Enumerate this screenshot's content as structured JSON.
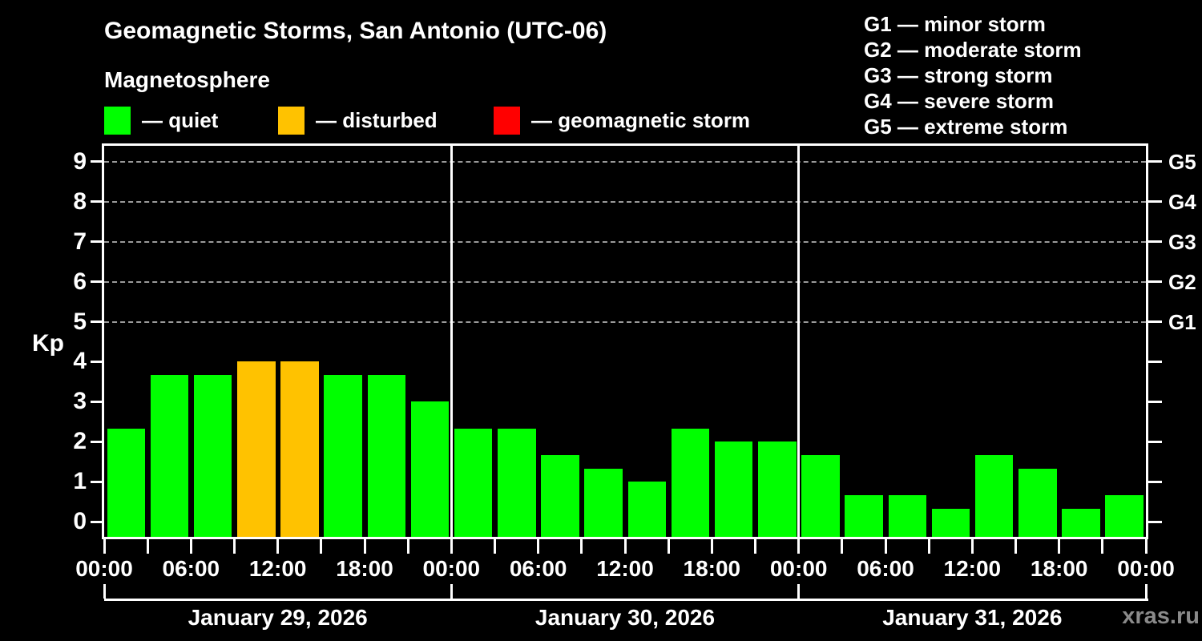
{
  "header": {
    "title": "Geomagnetic Storms, San Antonio (UTC-06)",
    "subtitle": "Magnetosphere"
  },
  "condition_legend": [
    {
      "name": "quiet",
      "color": "#00ff00",
      "label": "— quiet"
    },
    {
      "name": "disturbed",
      "color": "#ffc200",
      "label": "— disturbed"
    },
    {
      "name": "storm",
      "color": "#ff0000",
      "label": "— geomagnetic storm"
    }
  ],
  "storm_scale_legend": [
    "G1 — minor storm",
    "G2 — moderate storm",
    "G3 — strong storm",
    "G4 — severe storm",
    "G5 — extreme storm"
  ],
  "watermark": "xras.ru",
  "chart_data": {
    "type": "bar",
    "title": "Geomagnetic Storms, San Antonio (UTC-06)",
    "subtitle": "Magnetosphere",
    "ylabel": "Kp",
    "xlabel": "",
    "ylim": [
      -0.4,
      9.4
    ],
    "yticks": [
      0,
      1,
      2,
      3,
      4,
      5,
      6,
      7,
      8,
      9
    ],
    "grid_dashed_levels": [
      5,
      6,
      7,
      8,
      9
    ],
    "grid": "dashed horizontal at Kp 5-9 only",
    "legend_position": "top",
    "hours_per_bar": 3,
    "bars_per_day": 8,
    "x_tick_labels_per_day": [
      "00:00",
      "06:00",
      "12:00",
      "18:00"
    ],
    "x_axis_end_label": "00:00",
    "colors": {
      "quiet": "#00ff00",
      "disturbed": "#ffc200",
      "storm": "#ff0000"
    },
    "right_axis_labels": [
      {
        "label": "G1",
        "kp": 5
      },
      {
        "label": "G2",
        "kp": 6
      },
      {
        "label": "G3",
        "kp": 7
      },
      {
        "label": "G4",
        "kp": 8
      },
      {
        "label": "G5",
        "kp": 9
      }
    ],
    "days": [
      {
        "date": "January 29, 2026",
        "values": [
          2.33,
          3.67,
          3.67,
          4.0,
          4.0,
          3.67,
          3.67,
          3.0
        ],
        "status": [
          "quiet",
          "quiet",
          "quiet",
          "disturbed",
          "disturbed",
          "quiet",
          "quiet",
          "quiet"
        ]
      },
      {
        "date": "January 30, 2026",
        "values": [
          2.33,
          2.33,
          1.67,
          1.33,
          1.0,
          2.33,
          2.0,
          2.0
        ],
        "status": [
          "quiet",
          "quiet",
          "quiet",
          "quiet",
          "quiet",
          "quiet",
          "quiet",
          "quiet"
        ]
      },
      {
        "date": "January 31, 2026",
        "values": [
          1.67,
          0.67,
          0.67,
          0.33,
          1.67,
          1.33,
          0.33,
          0.67
        ],
        "status": [
          "quiet",
          "quiet",
          "quiet",
          "quiet",
          "quiet",
          "quiet",
          "quiet",
          "quiet"
        ]
      }
    ]
  }
}
